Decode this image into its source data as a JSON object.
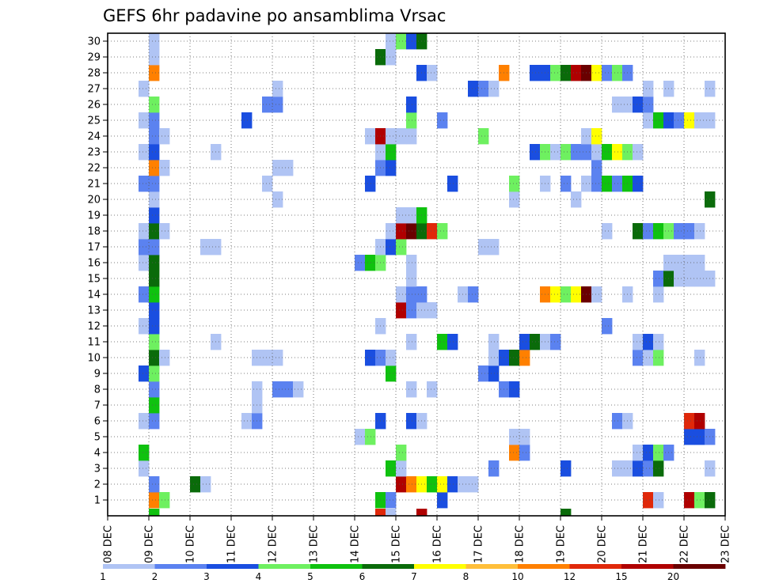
{
  "chart_data": {
    "type": "heatmap",
    "title": "GEFS 6hr padavine po ansamblima Vrsac",
    "xlabel": "",
    "ylabel": "",
    "x_tick_labels": [
      "08 DEC",
      "09 DEC",
      "10 DEC",
      "11 DEC",
      "12 DEC",
      "13 DEC",
      "14 DEC",
      "15 DEC",
      "16 DEC",
      "17 DEC",
      "18 DEC",
      "19 DEC",
      "20 DEC",
      "21 DEC",
      "22 DEC",
      "23 DEC"
    ],
    "y_tick_labels": [
      "1",
      "2",
      "3",
      "4",
      "5",
      "6",
      "7",
      "8",
      "9",
      "10",
      "11",
      "12",
      "13",
      "14",
      "15",
      "16",
      "17",
      "18",
      "19",
      "20",
      "21",
      "22",
      "23",
      "24",
      "25",
      "26",
      "27",
      "28",
      "29",
      "30"
    ],
    "grid": true,
    "legend": {
      "placement": "bottom",
      "labels": [
        "1",
        "2",
        "3",
        "4",
        "5",
        "6",
        "7",
        "8",
        "10",
        "12",
        "15",
        "20"
      ],
      "colors": [
        "#b0c4f4",
        "#5b82f0",
        "#1a4ee0",
        "#6ef060",
        "#0fc20f",
        "#0a6b0a",
        "#ffff00",
        "#ffbf3a",
        "#ff8000",
        "#e0280a",
        "#b00000",
        "#6a0000"
      ]
    },
    "cell_columns_per_day": 4,
    "first_day_column_offset": 0,
    "cells": [
      {
        "m": 1,
        "c": 4,
        "v": 10
      },
      {
        "m": 1,
        "c": 5,
        "v": 4
      },
      {
        "m": 1,
        "c": 26,
        "v": 5
      },
      {
        "m": 1,
        "c": 27,
        "v": 2
      },
      {
        "m": 1,
        "c": 32,
        "v": 3
      },
      {
        "m": 1,
        "c": 52,
        "v": 12
      },
      {
        "m": 1,
        "c": 53,
        "v": 1
      },
      {
        "m": 1,
        "c": 56,
        "v": 15
      },
      {
        "m": 1,
        "c": 57,
        "v": 4
      },
      {
        "m": 1,
        "c": 58,
        "v": 6
      },
      {
        "m": 2,
        "c": 4,
        "v": 2
      },
      {
        "m": 2,
        "c": 8,
        "v": 6
      },
      {
        "m": 2,
        "c": 9,
        "v": 1
      },
      {
        "m": 2,
        "c": 28,
        "v": 15
      },
      {
        "m": 2,
        "c": 29,
        "v": 10
      },
      {
        "m": 2,
        "c": 30,
        "v": 7
      },
      {
        "m": 2,
        "c": 31,
        "v": 5
      },
      {
        "m": 2,
        "c": 32,
        "v": 7
      },
      {
        "m": 2,
        "c": 33,
        "v": 3
      },
      {
        "m": 2,
        "c": 34,
        "v": 1
      },
      {
        "m": 2,
        "c": 35,
        "v": 1
      },
      {
        "m": 3,
        "c": 3,
        "v": 1
      },
      {
        "m": 3,
        "c": 27,
        "v": 5
      },
      {
        "m": 3,
        "c": 28,
        "v": 1
      },
      {
        "m": 3,
        "c": 37,
        "v": 2
      },
      {
        "m": 3,
        "c": 44,
        "v": 3
      },
      {
        "m": 3,
        "c": 49,
        "v": 1
      },
      {
        "m": 3,
        "c": 50,
        "v": 1
      },
      {
        "m": 3,
        "c": 51,
        "v": 3
      },
      {
        "m": 3,
        "c": 52,
        "v": 2
      },
      {
        "m": 3,
        "c": 53,
        "v": 6
      },
      {
        "m": 3,
        "c": 58,
        "v": 1
      },
      {
        "m": 4,
        "c": 3,
        "v": 5
      },
      {
        "m": 4,
        "c": 28,
        "v": 4
      },
      {
        "m": 4,
        "c": 39,
        "v": 10
      },
      {
        "m": 4,
        "c": 40,
        "v": 2
      },
      {
        "m": 4,
        "c": 51,
        "v": 1
      },
      {
        "m": 4,
        "c": 52,
        "v": 3
      },
      {
        "m": 4,
        "c": 53,
        "v": 4
      },
      {
        "m": 4,
        "c": 54,
        "v": 2
      },
      {
        "m": 5,
        "c": 24,
        "v": 1
      },
      {
        "m": 5,
        "c": 25,
        "v": 4
      },
      {
        "m": 5,
        "c": 39,
        "v": 1
      },
      {
        "m": 5,
        "c": 40,
        "v": 1
      },
      {
        "m": 5,
        "c": 56,
        "v": 3
      },
      {
        "m": 5,
        "c": 57,
        "v": 3
      },
      {
        "m": 5,
        "c": 58,
        "v": 2
      },
      {
        "m": 6,
        "c": 3,
        "v": 1
      },
      {
        "m": 6,
        "c": 4,
        "v": 2
      },
      {
        "m": 6,
        "c": 13,
        "v": 1
      },
      {
        "m": 6,
        "c": 14,
        "v": 2
      },
      {
        "m": 6,
        "c": 26,
        "v": 3
      },
      {
        "m": 6,
        "c": 29,
        "v": 3
      },
      {
        "m": 6,
        "c": 30,
        "v": 1
      },
      {
        "m": 6,
        "c": 49,
        "v": 2
      },
      {
        "m": 6,
        "c": 50,
        "v": 1
      },
      {
        "m": 6,
        "c": 56,
        "v": 12
      },
      {
        "m": 6,
        "c": 57,
        "v": 15
      },
      {
        "m": 7,
        "c": 4,
        "v": 5
      },
      {
        "m": 7,
        "c": 14,
        "v": 1
      },
      {
        "m": 8,
        "c": 4,
        "v": 2
      },
      {
        "m": 8,
        "c": 14,
        "v": 1
      },
      {
        "m": 8,
        "c": 16,
        "v": 2
      },
      {
        "m": 8,
        "c": 17,
        "v": 2
      },
      {
        "m": 8,
        "c": 18,
        "v": 1
      },
      {
        "m": 8,
        "c": 29,
        "v": 1
      },
      {
        "m": 8,
        "c": 31,
        "v": 1
      },
      {
        "m": 8,
        "c": 38,
        "v": 2
      },
      {
        "m": 8,
        "c": 39,
        "v": 3
      },
      {
        "m": 9,
        "c": 3,
        "v": 3
      },
      {
        "m": 9,
        "c": 4,
        "v": 4
      },
      {
        "m": 9,
        "c": 27,
        "v": 5
      },
      {
        "m": 9,
        "c": 36,
        "v": 2
      },
      {
        "m": 9,
        "c": 37,
        "v": 3
      },
      {
        "m": 10,
        "c": 4,
        "v": 6
      },
      {
        "m": 10,
        "c": 5,
        "v": 1
      },
      {
        "m": 10,
        "c": 14,
        "v": 1
      },
      {
        "m": 10,
        "c": 15,
        "v": 1
      },
      {
        "m": 10,
        "c": 16,
        "v": 1
      },
      {
        "m": 10,
        "c": 25,
        "v": 3
      },
      {
        "m": 10,
        "c": 26,
        "v": 2
      },
      {
        "m": 10,
        "c": 27,
        "v": 1
      },
      {
        "m": 10,
        "c": 37,
        "v": 1
      },
      {
        "m": 10,
        "c": 38,
        "v": 3
      },
      {
        "m": 10,
        "c": 39,
        "v": 6
      },
      {
        "m": 10,
        "c": 40,
        "v": 10
      },
      {
        "m": 10,
        "c": 51,
        "v": 2
      },
      {
        "m": 10,
        "c": 52,
        "v": 1
      },
      {
        "m": 10,
        "c": 53,
        "v": 4
      },
      {
        "m": 10,
        "c": 57,
        "v": 1
      },
      {
        "m": 11,
        "c": 4,
        "v": 4
      },
      {
        "m": 11,
        "c": 10,
        "v": 1
      },
      {
        "m": 11,
        "c": 29,
        "v": 1
      },
      {
        "m": 11,
        "c": 32,
        "v": 5
      },
      {
        "m": 11,
        "c": 33,
        "v": 3
      },
      {
        "m": 11,
        "c": 37,
        "v": 1
      },
      {
        "m": 11,
        "c": 40,
        "v": 3
      },
      {
        "m": 11,
        "c": 41,
        "v": 6
      },
      {
        "m": 11,
        "c": 42,
        "v": 1
      },
      {
        "m": 11,
        "c": 43,
        "v": 2
      },
      {
        "m": 11,
        "c": 51,
        "v": 1
      },
      {
        "m": 11,
        "c": 52,
        "v": 3
      },
      {
        "m": 11,
        "c": 53,
        "v": 1
      },
      {
        "m": 12,
        "c": 3,
        "v": 1
      },
      {
        "m": 12,
        "c": 4,
        "v": 3
      },
      {
        "m": 12,
        "c": 26,
        "v": 1
      },
      {
        "m": 12,
        "c": 48,
        "v": 2
      },
      {
        "m": 13,
        "c": 4,
        "v": 3
      },
      {
        "m": 13,
        "c": 28,
        "v": 15
      },
      {
        "m": 13,
        "c": 29,
        "v": 2
      },
      {
        "m": 13,
        "c": 30,
        "v": 1
      },
      {
        "m": 13,
        "c": 31,
        "v": 1
      },
      {
        "m": 14,
        "c": 3,
        "v": 2
      },
      {
        "m": 14,
        "c": 4,
        "v": 5
      },
      {
        "m": 14,
        "c": 28,
        "v": 1
      },
      {
        "m": 14,
        "c": 29,
        "v": 2
      },
      {
        "m": 14,
        "c": 30,
        "v": 2
      },
      {
        "m": 14,
        "c": 34,
        "v": 1
      },
      {
        "m": 14,
        "c": 35,
        "v": 2
      },
      {
        "m": 14,
        "c": 42,
        "v": 10
      },
      {
        "m": 14,
        "c": 43,
        "v": 7
      },
      {
        "m": 14,
        "c": 44,
        "v": 4
      },
      {
        "m": 14,
        "c": 45,
        "v": 7
      },
      {
        "m": 14,
        "c": 46,
        "v": 20
      },
      {
        "m": 14,
        "c": 47,
        "v": 1
      },
      {
        "m": 14,
        "c": 50,
        "v": 1
      },
      {
        "m": 14,
        "c": 53,
        "v": 1
      },
      {
        "m": 15,
        "c": 4,
        "v": 6
      },
      {
        "m": 15,
        "c": 29,
        "v": 1
      },
      {
        "m": 15,
        "c": 53,
        "v": 2
      },
      {
        "m": 15,
        "c": 54,
        "v": 6
      },
      {
        "m": 15,
        "c": 55,
        "v": 1
      },
      {
        "m": 15,
        "c": 56,
        "v": 1
      },
      {
        "m": 15,
        "c": 57,
        "v": 1
      },
      {
        "m": 15,
        "c": 58,
        "v": 1
      },
      {
        "m": 16,
        "c": 3,
        "v": 1
      },
      {
        "m": 16,
        "c": 4,
        "v": 6
      },
      {
        "m": 16,
        "c": 24,
        "v": 2
      },
      {
        "m": 16,
        "c": 25,
        "v": 5
      },
      {
        "m": 16,
        "c": 26,
        "v": 4
      },
      {
        "m": 16,
        "c": 29,
        "v": 1
      },
      {
        "m": 16,
        "c": 54,
        "v": 1
      },
      {
        "m": 16,
        "c": 55,
        "v": 1
      },
      {
        "m": 16,
        "c": 56,
        "v": 1
      },
      {
        "m": 16,
        "c": 57,
        "v": 1
      },
      {
        "m": 17,
        "c": 3,
        "v": 2
      },
      {
        "m": 17,
        "c": 4,
        "v": 2
      },
      {
        "m": 17,
        "c": 9,
        "v": 1
      },
      {
        "m": 17,
        "c": 10,
        "v": 1
      },
      {
        "m": 17,
        "c": 26,
        "v": 1
      },
      {
        "m": 17,
        "c": 27,
        "v": 3
      },
      {
        "m": 17,
        "c": 28,
        "v": 4
      },
      {
        "m": 17,
        "c": 36,
        "v": 1
      },
      {
        "m": 17,
        "c": 37,
        "v": 1
      },
      {
        "m": 18,
        "c": 3,
        "v": 1
      },
      {
        "m": 18,
        "c": 4,
        "v": 6
      },
      {
        "m": 18,
        "c": 5,
        "v": 1
      },
      {
        "m": 18,
        "c": 27,
        "v": 1
      },
      {
        "m": 18,
        "c": 28,
        "v": 15
      },
      {
        "m": 18,
        "c": 29,
        "v": 20
      },
      {
        "m": 18,
        "c": 30,
        "v": 6
      },
      {
        "m": 18,
        "c": 31,
        "v": 12
      },
      {
        "m": 18,
        "c": 32,
        "v": 4
      },
      {
        "m": 18,
        "c": 48,
        "v": 1
      },
      {
        "m": 18,
        "c": 51,
        "v": 6
      },
      {
        "m": 18,
        "c": 52,
        "v": 2
      },
      {
        "m": 18,
        "c": 53,
        "v": 5
      },
      {
        "m": 18,
        "c": 54,
        "v": 4
      },
      {
        "m": 18,
        "c": 55,
        "v": 2
      },
      {
        "m": 18,
        "c": 56,
        "v": 2
      },
      {
        "m": 18,
        "c": 57,
        "v": 1
      },
      {
        "m": 19,
        "c": 4,
        "v": 3
      },
      {
        "m": 19,
        "c": 28,
        "v": 1
      },
      {
        "m": 19,
        "c": 29,
        "v": 1
      },
      {
        "m": 19,
        "c": 30,
        "v": 5
      },
      {
        "m": 20,
        "c": 4,
        "v": 1
      },
      {
        "m": 20,
        "c": 16,
        "v": 1
      },
      {
        "m": 20,
        "c": 39,
        "v": 1
      },
      {
        "m": 20,
        "c": 45,
        "v": 1
      },
      {
        "m": 20,
        "c": 58,
        "v": 6
      },
      {
        "m": 21,
        "c": 3,
        "v": 2
      },
      {
        "m": 21,
        "c": 4,
        "v": 2
      },
      {
        "m": 21,
        "c": 15,
        "v": 1
      },
      {
        "m": 21,
        "c": 25,
        "v": 3
      },
      {
        "m": 21,
        "c": 33,
        "v": 3
      },
      {
        "m": 21,
        "c": 39,
        "v": 4
      },
      {
        "m": 21,
        "c": 42,
        "v": 1
      },
      {
        "m": 21,
        "c": 44,
        "v": 2
      },
      {
        "m": 21,
        "c": 46,
        "v": 1
      },
      {
        "m": 21,
        "c": 47,
        "v": 2
      },
      {
        "m": 21,
        "c": 48,
        "v": 5
      },
      {
        "m": 21,
        "c": 49,
        "v": 2
      },
      {
        "m": 21,
        "c": 50,
        "v": 5
      },
      {
        "m": 21,
        "c": 51,
        "v": 3
      },
      {
        "m": 22,
        "c": 4,
        "v": 10
      },
      {
        "m": 22,
        "c": 5,
        "v": 1
      },
      {
        "m": 22,
        "c": 16,
        "v": 1
      },
      {
        "m": 22,
        "c": 17,
        "v": 1
      },
      {
        "m": 22,
        "c": 26,
        "v": 2
      },
      {
        "m": 22,
        "c": 27,
        "v": 3
      },
      {
        "m": 22,
        "c": 47,
        "v": 2
      },
      {
        "m": 23,
        "c": 3,
        "v": 1
      },
      {
        "m": 23,
        "c": 4,
        "v": 3
      },
      {
        "m": 23,
        "c": 10,
        "v": 1
      },
      {
        "m": 23,
        "c": 26,
        "v": 1
      },
      {
        "m": 23,
        "c": 27,
        "v": 5
      },
      {
        "m": 23,
        "c": 41,
        "v": 3
      },
      {
        "m": 23,
        "c": 42,
        "v": 4
      },
      {
        "m": 23,
        "c": 43,
        "v": 1
      },
      {
        "m": 23,
        "c": 44,
        "v": 4
      },
      {
        "m": 23,
        "c": 45,
        "v": 2
      },
      {
        "m": 23,
        "c": 46,
        "v": 2
      },
      {
        "m": 23,
        "c": 47,
        "v": 1
      },
      {
        "m": 23,
        "c": 48,
        "v": 5
      },
      {
        "m": 23,
        "c": 49,
        "v": 7
      },
      {
        "m": 23,
        "c": 50,
        "v": 4
      },
      {
        "m": 23,
        "c": 51,
        "v": 1
      },
      {
        "m": 24,
        "c": 4,
        "v": 2
      },
      {
        "m": 24,
        "c": 5,
        "v": 1
      },
      {
        "m": 24,
        "c": 25,
        "v": 1
      },
      {
        "m": 24,
        "c": 26,
        "v": 15
      },
      {
        "m": 24,
        "c": 27,
        "v": 1
      },
      {
        "m": 24,
        "c": 28,
        "v": 1
      },
      {
        "m": 24,
        "c": 29,
        "v": 1
      },
      {
        "m": 24,
        "c": 36,
        "v": 4
      },
      {
        "m": 24,
        "c": 46,
        "v": 1
      },
      {
        "m": 24,
        "c": 47,
        "v": 7
      },
      {
        "m": 25,
        "c": 3,
        "v": 1
      },
      {
        "m": 25,
        "c": 4,
        "v": 2
      },
      {
        "m": 25,
        "c": 13,
        "v": 3
      },
      {
        "m": 25,
        "c": 29,
        "v": 4
      },
      {
        "m": 25,
        "c": 32,
        "v": 2
      },
      {
        "m": 25,
        "c": 52,
        "v": 1
      },
      {
        "m": 25,
        "c": 53,
        "v": 5
      },
      {
        "m": 25,
        "c": 54,
        "v": 3
      },
      {
        "m": 25,
        "c": 55,
        "v": 2
      },
      {
        "m": 25,
        "c": 56,
        "v": 7
      },
      {
        "m": 25,
        "c": 57,
        "v": 1
      },
      {
        "m": 25,
        "c": 58,
        "v": 1
      },
      {
        "m": 26,
        "c": 4,
        "v": 4
      },
      {
        "m": 26,
        "c": 15,
        "v": 2
      },
      {
        "m": 26,
        "c": 16,
        "v": 2
      },
      {
        "m": 26,
        "c": 29,
        "v": 3
      },
      {
        "m": 26,
        "c": 49,
        "v": 1
      },
      {
        "m": 26,
        "c": 50,
        "v": 1
      },
      {
        "m": 26,
        "c": 51,
        "v": 3
      },
      {
        "m": 26,
        "c": 52,
        "v": 2
      },
      {
        "m": 27,
        "c": 3,
        "v": 1
      },
      {
        "m": 27,
        "c": 16,
        "v": 1
      },
      {
        "m": 27,
        "c": 35,
        "v": 3
      },
      {
        "m": 27,
        "c": 36,
        "v": 2
      },
      {
        "m": 27,
        "c": 37,
        "v": 1
      },
      {
        "m": 27,
        "c": 52,
        "v": 1
      },
      {
        "m": 27,
        "c": 54,
        "v": 1
      },
      {
        "m": 27,
        "c": 58,
        "v": 1
      },
      {
        "m": 28,
        "c": 4,
        "v": 10
      },
      {
        "m": 28,
        "c": 30,
        "v": 3
      },
      {
        "m": 28,
        "c": 31,
        "v": 1
      },
      {
        "m": 28,
        "c": 38,
        "v": 10
      },
      {
        "m": 28,
        "c": 41,
        "v": 3
      },
      {
        "m": 28,
        "c": 42,
        "v": 3
      },
      {
        "m": 28,
        "c": 43,
        "v": 4
      },
      {
        "m": 28,
        "c": 44,
        "v": 6
      },
      {
        "m": 28,
        "c": 45,
        "v": 15
      },
      {
        "m": 28,
        "c": 46,
        "v": 20
      },
      {
        "m": 28,
        "c": 47,
        "v": 7
      },
      {
        "m": 28,
        "c": 48,
        "v": 2
      },
      {
        "m": 28,
        "c": 49,
        "v": 4
      },
      {
        "m": 28,
        "c": 50,
        "v": 2
      },
      {
        "m": 29,
        "c": 4,
        "v": 1
      },
      {
        "m": 29,
        "c": 26,
        "v": 6
      },
      {
        "m": 29,
        "c": 27,
        "v": 1
      },
      {
        "m": 30,
        "c": 4,
        "v": 1
      },
      {
        "m": 30,
        "c": 27,
        "v": 1
      },
      {
        "m": 30,
        "c": 28,
        "v": 4
      },
      {
        "m": 30,
        "c": 29,
        "v": 3
      },
      {
        "m": 30,
        "c": 30,
        "v": 6
      }
    ],
    "bottom_edge_cells": [
      {
        "c": 4,
        "v": 5
      },
      {
        "c": 26,
        "v": 12
      },
      {
        "c": 27,
        "v": 1
      },
      {
        "c": 30,
        "v": 15
      },
      {
        "c": 44,
        "v": 6
      }
    ]
  }
}
